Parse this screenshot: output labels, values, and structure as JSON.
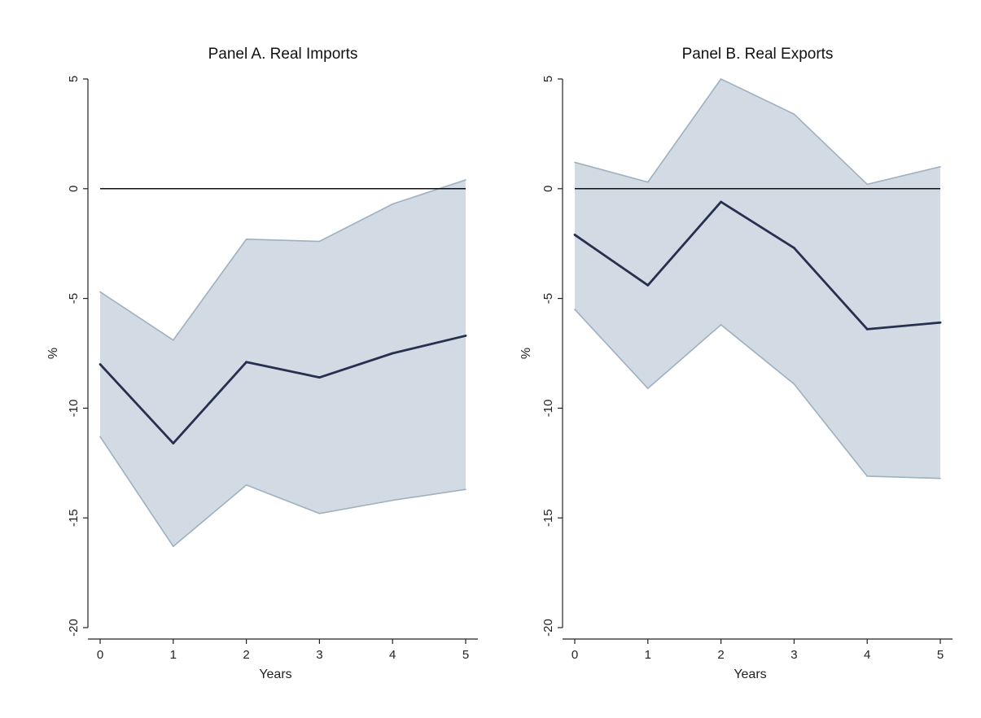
{
  "chart_data": [
    {
      "type": "line",
      "title": "Panel A. Real Imports",
      "xlabel": "Years",
      "ylabel": "%",
      "x": [
        0,
        1,
        2,
        3,
        4,
        5
      ],
      "xticks": [
        "0",
        "1",
        "2",
        "3",
        "4",
        "5"
      ],
      "yticks": [
        "5",
        "0",
        "-5",
        "-10",
        "-15",
        "-20"
      ],
      "xlim": [
        0,
        5
      ],
      "ylim": [
        -20,
        5
      ],
      "reference_line": 0,
      "grid": false,
      "series": [
        {
          "role": "estimate",
          "values": [
            -8.0,
            -11.6,
            -7.9,
            -8.6,
            -7.5,
            -6.7
          ],
          "color": "#26304f"
        },
        {
          "role": "upper_bound",
          "values": [
            -4.7,
            -6.9,
            -2.3,
            -2.4,
            -0.7,
            0.4
          ],
          "color": "#9fb0bf"
        },
        {
          "role": "lower_bound",
          "values": [
            -11.3,
            -16.3,
            -13.5,
            -14.8,
            -14.2,
            -13.7
          ],
          "color": "#9fb0bf"
        }
      ],
      "band_color": "#d2dae3"
    },
    {
      "type": "line",
      "title": "Panel B. Real Exports",
      "xlabel": "Years",
      "ylabel": "%",
      "x": [
        0,
        1,
        2,
        3,
        4,
        5
      ],
      "xticks": [
        "0",
        "1",
        "2",
        "3",
        "4",
        "5"
      ],
      "yticks": [
        "5",
        "0",
        "-5",
        "-10",
        "-15",
        "-20"
      ],
      "xlim": [
        0,
        5
      ],
      "ylim": [
        -20,
        5
      ],
      "reference_line": 0,
      "grid": false,
      "series": [
        {
          "role": "estimate",
          "values": [
            -2.1,
            -4.4,
            -0.6,
            -2.7,
            -6.4,
            -6.1
          ],
          "color": "#26304f"
        },
        {
          "role": "upper_bound",
          "values": [
            1.2,
            0.3,
            5.0,
            3.4,
            0.2,
            1.0
          ],
          "color": "#9fb0bf"
        },
        {
          "role": "lower_bound",
          "values": [
            -5.5,
            -9.1,
            -6.2,
            -8.9,
            -13.1,
            -13.2
          ],
          "color": "#9fb0bf"
        }
      ],
      "band_color": "#d2dae3"
    }
  ]
}
